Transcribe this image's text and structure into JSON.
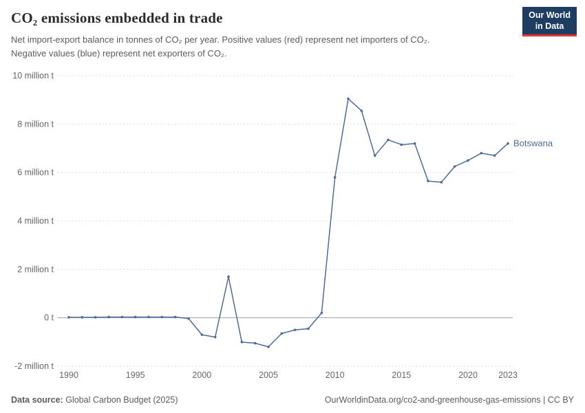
{
  "header": {
    "title": "CO₂ emissions embedded in trade",
    "subtitle_line1": "Net import-export balance in tonnes of CO₂ per year. Positive values (red) represent net importers of CO₂.",
    "subtitle_line2": "Negative values (blue) represent net exporters of CO₂.",
    "logo_line1": "Our World",
    "logo_line2": "in Data"
  },
  "chart_data": {
    "type": "line",
    "title": "CO₂ emissions embedded in trade",
    "unit": "tonnes of CO₂ per year",
    "x": [
      1990,
      1991,
      1992,
      1993,
      1994,
      1995,
      1996,
      1997,
      1998,
      1999,
      2000,
      2001,
      2002,
      2003,
      2004,
      2005,
      2006,
      2007,
      2008,
      2009,
      2010,
      2011,
      2012,
      2013,
      2014,
      2015,
      2016,
      2017,
      2018,
      2019,
      2020,
      2021,
      2022,
      2023
    ],
    "series": [
      {
        "name": "Botswana",
        "color": "#4c6a9c",
        "values": [
          20000,
          20000,
          20000,
          30000,
          30000,
          30000,
          30000,
          30000,
          30000,
          -30000,
          -700000,
          -800000,
          1700000,
          -1000000,
          -1050000,
          -1200000,
          -650000,
          -500000,
          -450000,
          200000,
          5800000,
          9050000,
          8550000,
          6700000,
          7350000,
          7150000,
          7200000,
          5650000,
          5600000,
          6250000,
          6500000,
          6800000,
          6700000,
          7200000
        ]
      }
    ],
    "xticks": [
      1990,
      1995,
      2000,
      2005,
      2010,
      2015,
      2020,
      2023
    ],
    "yticks": [
      {
        "value": -2000000,
        "label": "-2 million t"
      },
      {
        "value": 0,
        "label": "0 t"
      },
      {
        "value": 2000000,
        "label": "2 million t"
      },
      {
        "value": 4000000,
        "label": "4 million t"
      },
      {
        "value": 6000000,
        "label": "6 million t"
      },
      {
        "value": 8000000,
        "label": "8 million t"
      },
      {
        "value": 10000000,
        "label": "10 million t"
      }
    ],
    "ylim": [
      -2000000,
      10000000
    ],
    "xlim": [
      1990,
      2023
    ],
    "grid": true,
    "legend_position": "end-of-line-label"
  },
  "footer": {
    "datasource_label": "Data source:",
    "datasource_value": "Global Carbon Budget (2025)",
    "right_text": "OurWorldinData.org/co2-and-greenhouse-gas-emissions | CC BY"
  },
  "colors": {
    "line": "#4c6a9c",
    "grid": "#dddddd",
    "zero_line": "#a0a0a0",
    "tick_text": "#666666",
    "logo_navy": "#1d3d63",
    "logo_red": "#e5332d"
  }
}
